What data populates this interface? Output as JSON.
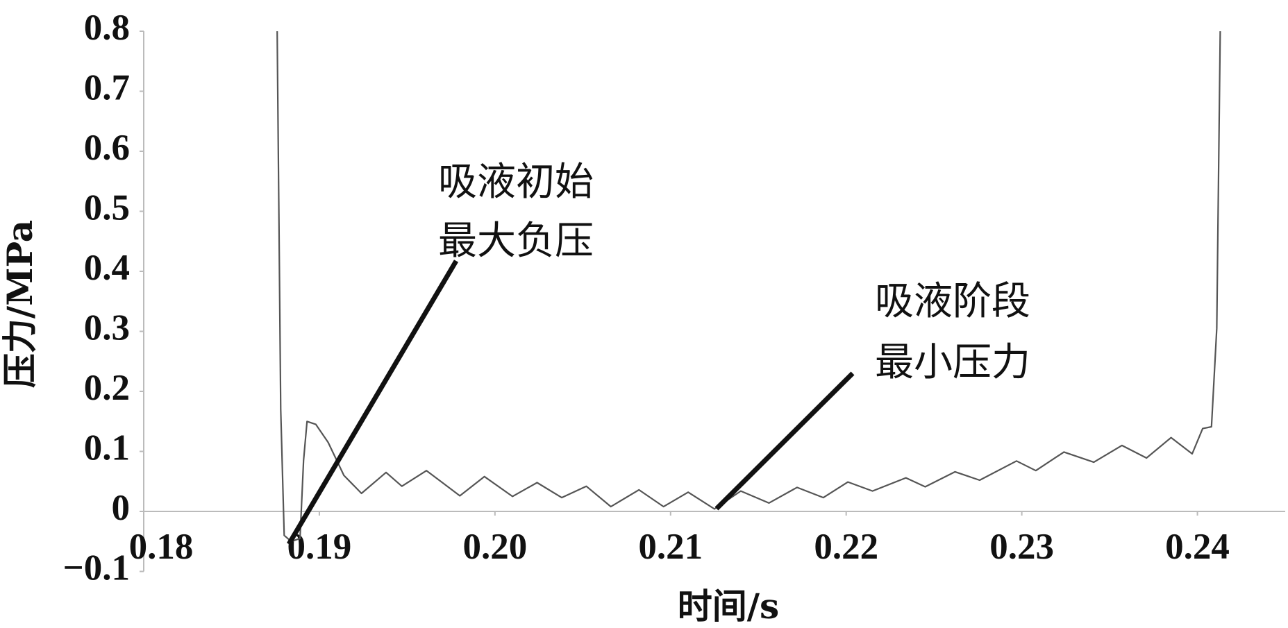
{
  "chart_data": {
    "type": "line",
    "x_label": "时间/s",
    "y_label": "压力/MPa",
    "xlim": [
      0.18,
      0.245
    ],
    "ylim": [
      -0.1,
      0.8
    ],
    "xticks": [
      0.18,
      0.19,
      {
        "value": 0.2,
        "label": "0.20"
      },
      0.21,
      0.22,
      0.23,
      0.24
    ],
    "yticks": [
      {
        "value": -0.1,
        "label": "−0.1"
      },
      0,
      0.1,
      0.2,
      0.3,
      0.4,
      0.5,
      0.6,
      0.7,
      0.8
    ],
    "grid": false,
    "series": [
      {
        "color": "#555555",
        "x": [
          0.1876,
          0.1878,
          0.188,
          0.1884,
          0.1889,
          0.1891,
          0.1893,
          0.1898,
          0.1905,
          0.1914,
          0.1924,
          0.1938,
          0.1947,
          0.1961,
          0.198,
          0.1994,
          0.201,
          0.2024,
          0.2038,
          0.2052,
          0.2066,
          0.2082,
          0.2096,
          0.211,
          0.2125,
          0.214,
          0.2156,
          0.2172,
          0.2187,
          0.2201,
          0.2215,
          0.2234,
          0.2245,
          0.2262,
          0.2276,
          0.2297,
          0.2308,
          0.2324,
          0.2341,
          0.2357,
          0.2371,
          0.2385,
          0.2397,
          0.2403,
          0.2408,
          0.2411,
          0.2413
        ],
        "values": [
          0.8,
          0.17,
          -0.04,
          -0.05,
          -0.045,
          0.085,
          0.15,
          0.145,
          0.115,
          0.06,
          0.03,
          0.065,
          0.042,
          0.068,
          0.026,
          0.058,
          0.025,
          0.048,
          0.023,
          0.042,
          0.008,
          0.036,
          0.008,
          0.032,
          0.004,
          0.034,
          0.014,
          0.04,
          0.023,
          0.049,
          0.034,
          0.056,
          0.041,
          0.066,
          0.052,
          0.084,
          0.068,
          0.099,
          0.082,
          0.11,
          0.089,
          0.123,
          0.096,
          0.138,
          0.141,
          0.305,
          0.8
        ]
      }
    ],
    "annotations": [
      {
        "lines": [
          "吸液初始",
          "最大负压"
        ]
      },
      {
        "lines": [
          "吸液阶段",
          "最小压力"
        ]
      }
    ]
  }
}
